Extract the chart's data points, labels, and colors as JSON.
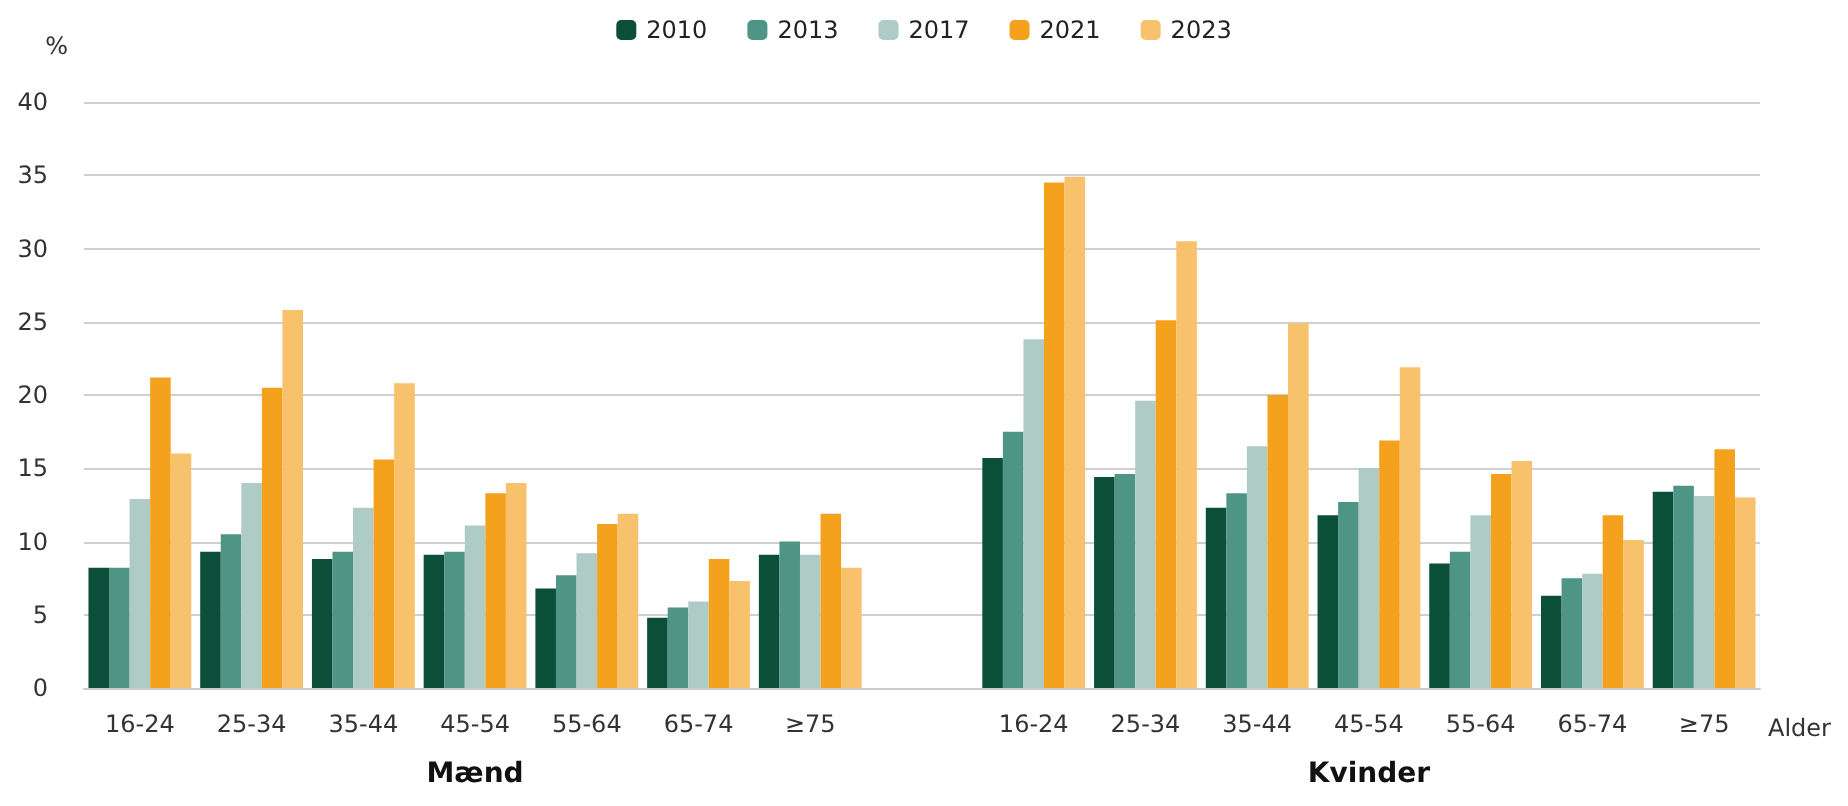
{
  "chart_data": {
    "type": "bar",
    "ylabel": "%",
    "xlabel": "Alder",
    "categories": [
      "16-24",
      "25-34",
      "35-44",
      "45-54",
      "55-64",
      "65-74",
      "≥75",
      null,
      "16-24",
      "25-34",
      "35-44",
      "45-54",
      "55-64",
      "65-74",
      "≥75"
    ],
    "series": [
      {
        "name": "2010",
        "color": "#0b4f3a",
        "values": [
          8.2,
          9.3,
          8.8,
          9.1,
          6.8,
          4.8,
          9.1,
          null,
          15.7,
          14.4,
          12.3,
          11.8,
          8.5,
          6.3,
          13.4
        ]
      },
      {
        "name": "2013",
        "color": "#4e9585",
        "values": [
          8.2,
          10.5,
          9.3,
          9.3,
          7.7,
          5.5,
          10.0,
          null,
          17.5,
          14.6,
          13.3,
          12.7,
          9.3,
          7.5,
          13.8
        ]
      },
      {
        "name": "2017",
        "color": "#aecbc5",
        "values": [
          12.9,
          14.0,
          12.3,
          11.1,
          9.2,
          5.9,
          9.1,
          null,
          23.8,
          19.6,
          16.5,
          15.0,
          11.8,
          7.8,
          13.1
        ]
      },
      {
        "name": "2021",
        "color": "#f4a21d",
        "values": [
          21.2,
          20.5,
          15.6,
          13.3,
          11.2,
          8.8,
          11.9,
          null,
          34.5,
          25.1,
          20.0,
          16.9,
          14.6,
          11.8,
          16.3
        ]
      },
      {
        "name": "2023",
        "color": "#f8c16b",
        "values": [
          16.0,
          25.8,
          20.8,
          14.0,
          11.9,
          7.3,
          8.2,
          null,
          34.9,
          30.5,
          24.9,
          21.9,
          15.5,
          10.1,
          13.0
        ]
      }
    ],
    "ylim": [
      0,
      40
    ],
    "yticks": [
      0,
      5,
      10,
      15,
      20,
      25,
      30,
      35,
      40
    ],
    "grid": "y",
    "legend": "top",
    "annotations": [
      "Mænd",
      "Kvinder"
    ]
  }
}
